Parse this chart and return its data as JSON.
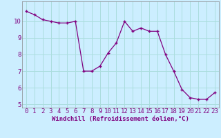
{
  "x": [
    0,
    1,
    2,
    3,
    4,
    5,
    6,
    7,
    8,
    9,
    10,
    11,
    12,
    13,
    14,
    15,
    16,
    17,
    18,
    19,
    20,
    21,
    22,
    23
  ],
  "y": [
    10.6,
    10.4,
    10.1,
    10.0,
    9.9,
    9.9,
    10.0,
    7.0,
    7.0,
    7.3,
    8.1,
    8.7,
    10.0,
    9.4,
    9.6,
    9.4,
    9.4,
    8.0,
    7.0,
    5.9,
    5.4,
    5.3,
    5.3,
    5.7
  ],
  "line_color": "#800080",
  "marker": "D",
  "marker_size": 2.0,
  "bg_color": "#cceeff",
  "grid_color": "#aadddd",
  "xlabel": "Windchill (Refroidissement éolien,°C)",
  "xlabel_color": "#800080",
  "tick_color": "#800080",
  "xlim": [
    -0.5,
    23.5
  ],
  "ylim": [
    4.8,
    11.2
  ],
  "yticks": [
    5,
    6,
    7,
    8,
    9,
    10
  ],
  "xticks": [
    0,
    1,
    2,
    3,
    4,
    5,
    6,
    7,
    8,
    9,
    10,
    11,
    12,
    13,
    14,
    15,
    16,
    17,
    18,
    19,
    20,
    21,
    22,
    23
  ],
  "label_fontsize": 6.5,
  "tick_fontsize": 6.5
}
